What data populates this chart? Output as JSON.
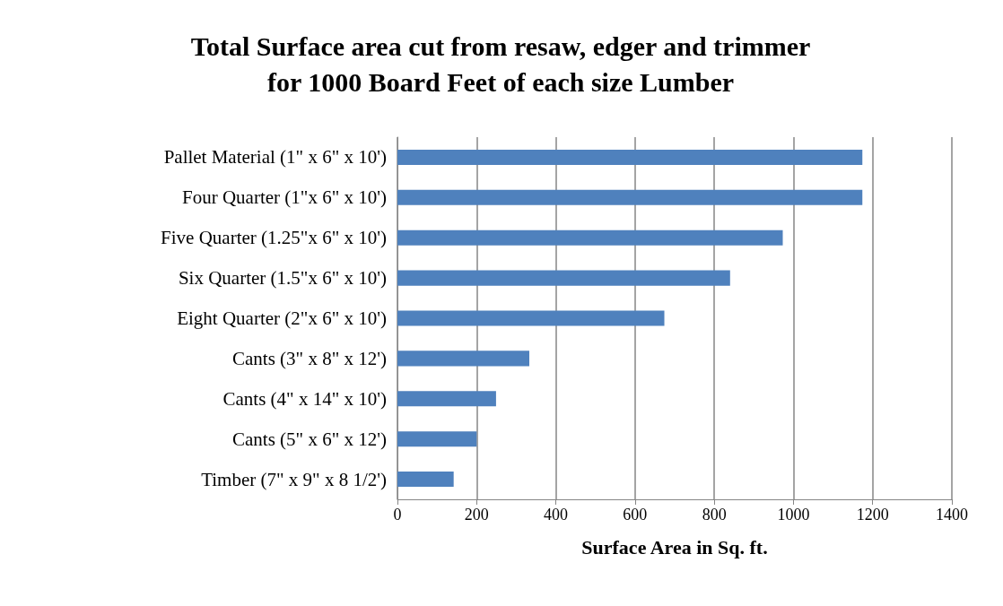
{
  "chart_data": {
    "type": "bar",
    "orientation": "horizontal",
    "title": "Total Surface area cut from resaw, edger and trimmer\nfor 1000 Board Feet of each size Lumber",
    "xlabel": "Surface Area in Sq. ft.",
    "categories": [
      "Pallet Material (1\" x 6\" x 10')",
      "Four Quarter (1\"x 6\" x 10')",
      "Five Quarter (1.25\"x 6\" x 10')",
      "Six Quarter (1.5\"x 6\" x 10')",
      "Eight Quarter (2\"x 6\" x 10')",
      "Cants (3\" x 8\" x 12')",
      "Cants (4\" x 14\" x 10')",
      "Cants (5\" x 6\" x 12')",
      "Timber (7\" x 9\" x 8 1/2')"
    ],
    "values": [
      1174,
      1174,
      973,
      840,
      674,
      333,
      249,
      200,
      142
    ],
    "color": "#4f81bd",
    "xlim": [
      0,
      1400
    ],
    "xticks": [
      0,
      200,
      400,
      600,
      800,
      1000,
      1200,
      1400
    ],
    "grid": "x"
  }
}
